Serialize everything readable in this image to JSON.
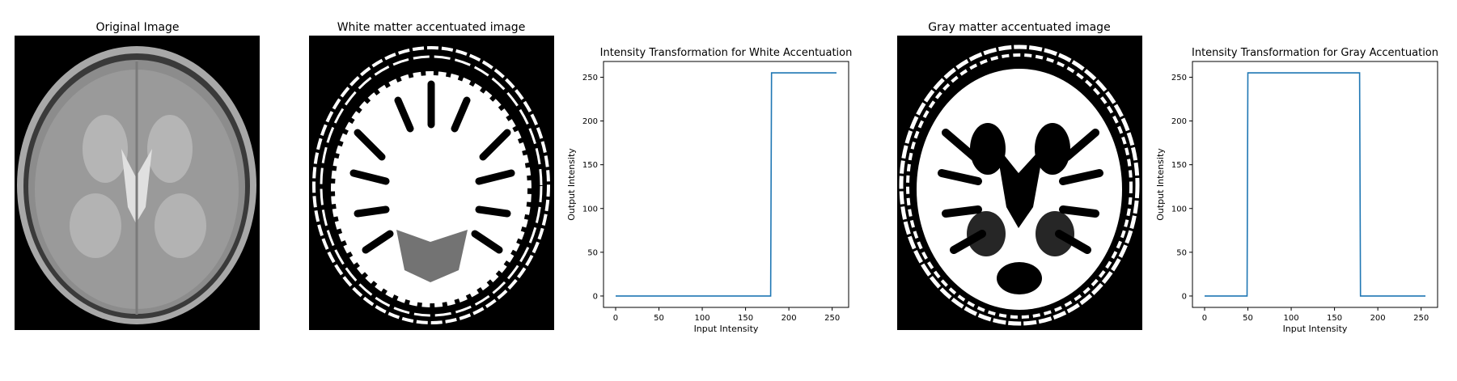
{
  "images": [
    {
      "title": "Original Image",
      "icon": "brain-mri-original-image"
    },
    {
      "title": "White matter accentuated image",
      "icon": "brain-mri-white-matter-mask"
    },
    {
      "title": "Gray matter accentuated image",
      "icon": "brain-mri-gray-matter-mask"
    }
  ],
  "colors": {
    "line": "#1f77b4",
    "axes": "#000000",
    "background": "#ffffff"
  },
  "chart_data": [
    {
      "type": "line",
      "title": "Intensity Transformation for White Accentuation",
      "xlabel": "Input Intensity",
      "ylabel": "Output Intensity",
      "xlim": [
        -14,
        269
      ],
      "ylim": [
        -13,
        268
      ],
      "xticks": [
        0,
        50,
        100,
        150,
        200,
        250
      ],
      "yticks": [
        0,
        50,
        100,
        150,
        200,
        250
      ],
      "grid": false,
      "series": [
        {
          "x": [
            0,
            179,
            180,
            255
          ],
          "y": [
            0,
            0,
            255,
            255
          ]
        }
      ]
    },
    {
      "type": "line",
      "title": "Intensity Transformation for Gray Accentuation",
      "xlabel": "Input Intensity",
      "ylabel": "Output Intensity",
      "xlim": [
        -14,
        269
      ],
      "ylim": [
        -13,
        268
      ],
      "xticks": [
        0,
        50,
        100,
        150,
        200,
        250
      ],
      "yticks": [
        0,
        50,
        100,
        150,
        200,
        250
      ],
      "grid": false,
      "series": [
        {
          "x": [
            0,
            49,
            50,
            179,
            180,
            255
          ],
          "y": [
            0,
            0,
            255,
            255,
            0,
            0
          ]
        }
      ]
    }
  ]
}
